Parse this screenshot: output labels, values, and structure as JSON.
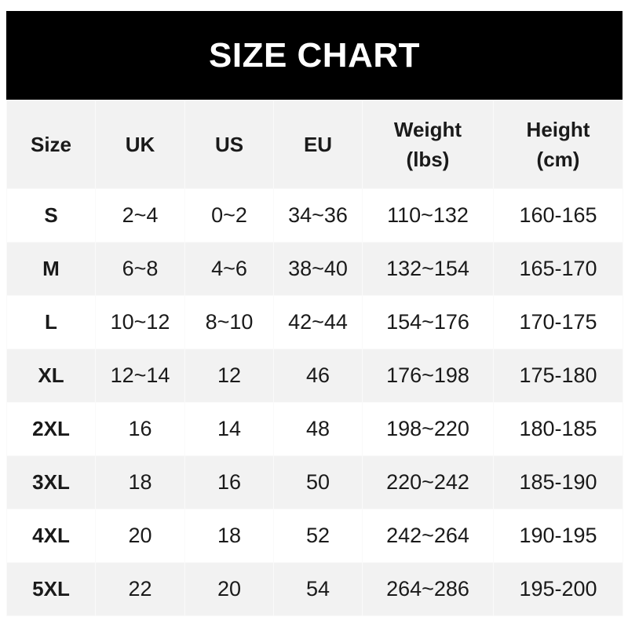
{
  "title": "SIZE CHART",
  "headers": [
    "Size",
    "UK",
    "US",
    "EU",
    "Weight\n(lbs)",
    "Height\n(cm)"
  ],
  "rows": [
    [
      "S",
      "2~4",
      "0~2",
      "34~36",
      "110~132",
      "160-165"
    ],
    [
      "M",
      "6~8",
      "4~6",
      "38~40",
      "132~154",
      "165-170"
    ],
    [
      "L",
      "10~12",
      "8~10",
      "42~44",
      "154~176",
      "170-175"
    ],
    [
      "XL",
      "12~14",
      "12",
      "46",
      "176~198",
      "175-180"
    ],
    [
      "2XL",
      "16",
      "14",
      "48",
      "198~220",
      "180-185"
    ],
    [
      "3XL",
      "18",
      "16",
      "50",
      "220~242",
      "185-190"
    ],
    [
      "4XL",
      "20",
      "18",
      "52",
      "242~264",
      "190-195"
    ],
    [
      "5XL",
      "22",
      "20",
      "54",
      "264~286",
      "195-200"
    ]
  ],
  "colors": {
    "title_bg": "#000000",
    "stripe": "#f2f2f2"
  }
}
